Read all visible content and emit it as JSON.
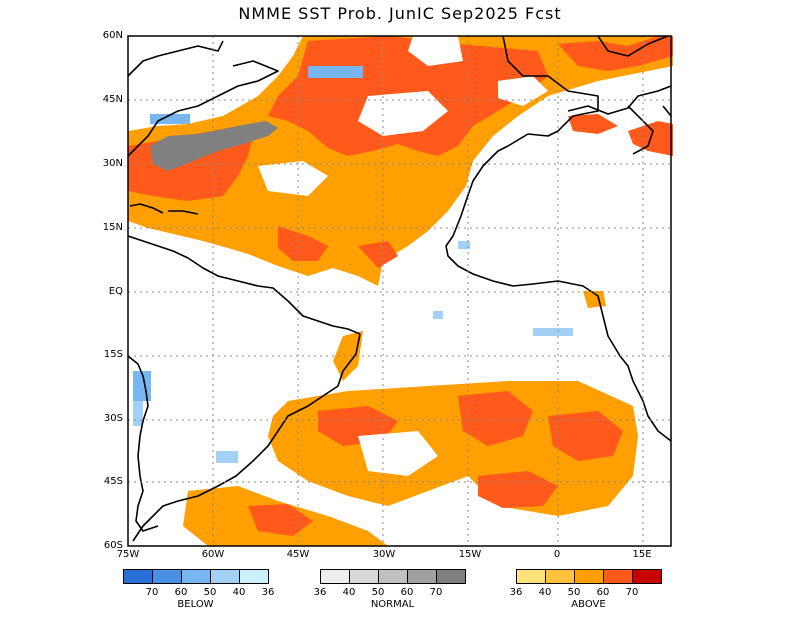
{
  "title": "NMME SST Prob. JunIC  Sep2025 Fcst",
  "lat_labels": [
    "60N",
    "45N",
    "30N",
    "15N",
    "EQ",
    "15S",
    "30S",
    "45S",
    "60S"
  ],
  "lon_labels": [
    "75W",
    "60W",
    "45W",
    "30W",
    "15W",
    "0",
    "15E"
  ],
  "legends": [
    {
      "name": "BELOW",
      "colors": [
        "#2a6fd6",
        "#4a90e2",
        "#78b6f2",
        "#a3d0f7",
        "#c9f0fb"
      ],
      "ticks": [
        "70",
        "60",
        "50",
        "40",
        "36"
      ]
    },
    {
      "name": "NORMAL",
      "colors": [
        "#eeeeee",
        "#d8d8d8",
        "#c0c0c0",
        "#a0a0a0",
        "#808080"
      ],
      "ticks": [
        "36",
        "40",
        "50",
        "60",
        "70"
      ]
    },
    {
      "name": "ABOVE",
      "colors": [
        "#ffe27a",
        "#ffc23d",
        "#ff9f00",
        "#ff5a1c",
        "#c80000"
      ],
      "ticks": [
        "36",
        "40",
        "50",
        "60",
        "70"
      ]
    }
  ],
  "colors": {
    "land_outline": "#000000",
    "grid": "#888888",
    "ocean": "#ffffff"
  }
}
